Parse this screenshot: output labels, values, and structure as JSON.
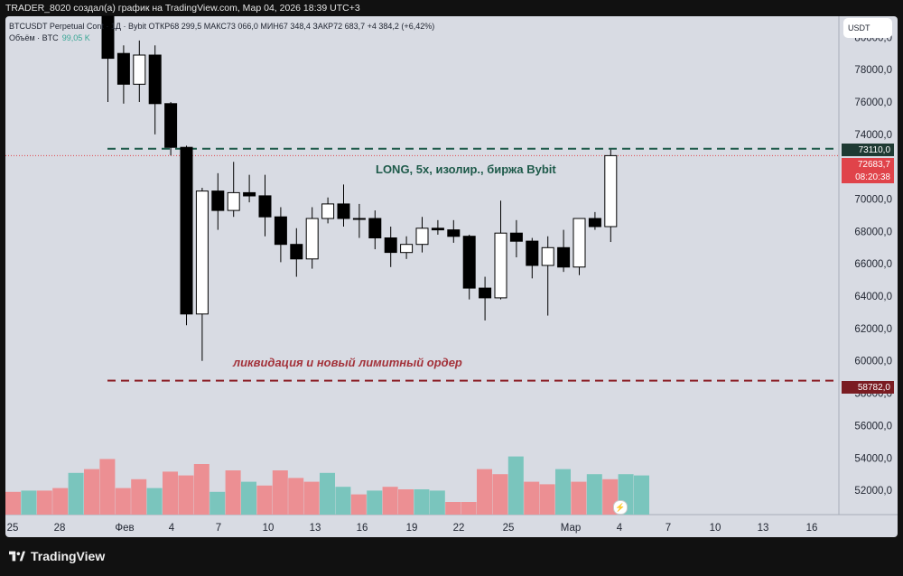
{
  "header": {
    "title": "TRADER_8020 создал(а) график на TradingView.com, Мар 04, 2026 18:39 UTC+3"
  },
  "legend": {
    "symbol_line": "BTCUSDT Perpetual Cont    · 1Д · Bybit  ОТКР68 299,5  МАКС73 066,0  МИН67 348,4  ЗАКР72 683,7  +4 384,2 (+6,42%)",
    "volume_label": "Объём · BTC",
    "volume_value": "99,05 K"
  },
  "price_axis": {
    "currency": "USDT",
    "ticks": [
      "80000,0",
      "78000,0",
      "76000,0",
      "74000,0",
      "72000,0",
      "70000,0",
      "68000,0",
      "66000,0",
      "64000,0",
      "62000,0",
      "60000,0",
      "58000,0",
      "56000,0",
      "54000,0",
      "52000,0"
    ],
    "labels": {
      "long_level": "73110,0",
      "last_price": "72683,7",
      "countdown": "08:20:38",
      "liquidation_level": "58782,0"
    }
  },
  "time_axis": {
    "ticks": [
      "25",
      "28",
      "Фев",
      "4",
      "7",
      "10",
      "13",
      "16",
      "19",
      "22",
      "25",
      "Мар",
      "4",
      "7",
      "10",
      "13",
      "16"
    ]
  },
  "annotations": {
    "long": "LONG, 5x, изолир., биржа Bybit",
    "liquidation": "ликвидация и новый лимитный ордер"
  },
  "brand": {
    "name": "TradingView"
  },
  "colors": {
    "background": "#d8dbe3",
    "up_candle": "#ffffff",
    "down_candle": "#000000",
    "volume_up": "#7ac5bd",
    "volume_down": "#ec8f93",
    "long_line": "#1e5a4a",
    "liquidation_line": "#8b1d24",
    "last_price": "#e0434a"
  },
  "chart_data": {
    "type": "candlestick",
    "title": "",
    "ylim": [
      50500,
      81300
    ],
    "levels": {
      "long_entry": 73110.0,
      "last_price": 72683.7,
      "liquidation": 58782.0
    },
    "candles": [
      {
        "date": "Jan 30",
        "open": 82500,
        "high": 83800,
        "low": 76000,
        "close": 78700
      },
      {
        "date": "Jan 31",
        "open": 79000,
        "high": 79500,
        "low": 75900,
        "close": 77100
      },
      {
        "date": "Feb 1",
        "open": 77100,
        "high": 79800,
        "low": 76000,
        "close": 78900
      },
      {
        "date": "Feb 2",
        "open": 78900,
        "high": 79500,
        "low": 74000,
        "close": 75900
      },
      {
        "date": "Feb 3",
        "open": 75900,
        "high": 76000,
        "low": 72700,
        "close": 73200
      },
      {
        "date": "Feb 4",
        "open": 73200,
        "high": 73300,
        "low": 62200,
        "close": 62900
      },
      {
        "date": "Feb 5",
        "open": 62900,
        "high": 70700,
        "low": 60000,
        "close": 70500
      },
      {
        "date": "Feb 6",
        "open": 70500,
        "high": 71600,
        "low": 68100,
        "close": 69300
      },
      {
        "date": "Feb 7",
        "open": 69300,
        "high": 72300,
        "low": 68900,
        "close": 70400
      },
      {
        "date": "Feb 8",
        "open": 70400,
        "high": 71500,
        "low": 69800,
        "close": 70200
      },
      {
        "date": "Feb 9",
        "open": 70200,
        "high": 71500,
        "low": 67700,
        "close": 68900
      },
      {
        "date": "Feb 10",
        "open": 68900,
        "high": 69500,
        "low": 66100,
        "close": 67200
      },
      {
        "date": "Feb 11",
        "open": 67200,
        "high": 68200,
        "low": 65200,
        "close": 66300
      },
      {
        "date": "Feb 12",
        "open": 66300,
        "high": 69500,
        "low": 65700,
        "close": 68800
      },
      {
        "date": "Feb 13",
        "open": 68800,
        "high": 70100,
        "low": 68500,
        "close": 69700
      },
      {
        "date": "Feb 14",
        "open": 69700,
        "high": 70900,
        "low": 68300,
        "close": 68800
      },
      {
        "date": "Feb 15",
        "open": 68800,
        "high": 69700,
        "low": 67600,
        "close": 68800
      },
      {
        "date": "Feb 16",
        "open": 68800,
        "high": 69300,
        "low": 66900,
        "close": 67600
      },
      {
        "date": "Feb 17",
        "open": 67600,
        "high": 68300,
        "low": 65800,
        "close": 66700
      },
      {
        "date": "Feb 18",
        "open": 66700,
        "high": 67700,
        "low": 66300,
        "close": 67200
      },
      {
        "date": "Feb 19",
        "open": 67200,
        "high": 68900,
        "low": 66700,
        "close": 68200
      },
      {
        "date": "Feb 20",
        "open": 68200,
        "high": 68700,
        "low": 67800,
        "close": 68100
      },
      {
        "date": "Feb 21",
        "open": 68100,
        "high": 68700,
        "low": 67300,
        "close": 67700
      },
      {
        "date": "Feb 22",
        "open": 67700,
        "high": 67800,
        "low": 63800,
        "close": 64500
      },
      {
        "date": "Feb 23",
        "open": 64500,
        "high": 65200,
        "low": 62500,
        "close": 63900
      },
      {
        "date": "Feb 24",
        "open": 63900,
        "high": 69900,
        "low": 63800,
        "close": 67900
      },
      {
        "date": "Feb 25",
        "open": 67900,
        "high": 68700,
        "low": 66400,
        "close": 67400
      },
      {
        "date": "Feb 26",
        "open": 67400,
        "high": 67600,
        "low": 65100,
        "close": 65900
      },
      {
        "date": "Feb 27",
        "open": 65900,
        "high": 67700,
        "low": 62800,
        "close": 67000
      },
      {
        "date": "Feb 28",
        "open": 67000,
        "high": 68100,
        "low": 65500,
        "close": 65800
      },
      {
        "date": "Mar 1",
        "open": 65800,
        "high": 68800,
        "low": 65300,
        "close": 68800
      },
      {
        "date": "Mar 2",
        "open": 68800,
        "high": 69200,
        "low": 68100,
        "close": 68300
      },
      {
        "date": "Mar 3",
        "open": 68299.5,
        "high": 73066.0,
        "low": 67348.4,
        "close": 72683.7
      }
    ],
    "volume": {
      "max": 100,
      "values": [
        18,
        19,
        19,
        21,
        33,
        36,
        44,
        21,
        28,
        21,
        34,
        31,
        40,
        18,
        35,
        26,
        23,
        35,
        29,
        26,
        33,
        22,
        16,
        19,
        22,
        20,
        20,
        19,
        10,
        10,
        36,
        32,
        46,
        26,
        24,
        36,
        26,
        32,
        28,
        32,
        31
      ]
    }
  }
}
